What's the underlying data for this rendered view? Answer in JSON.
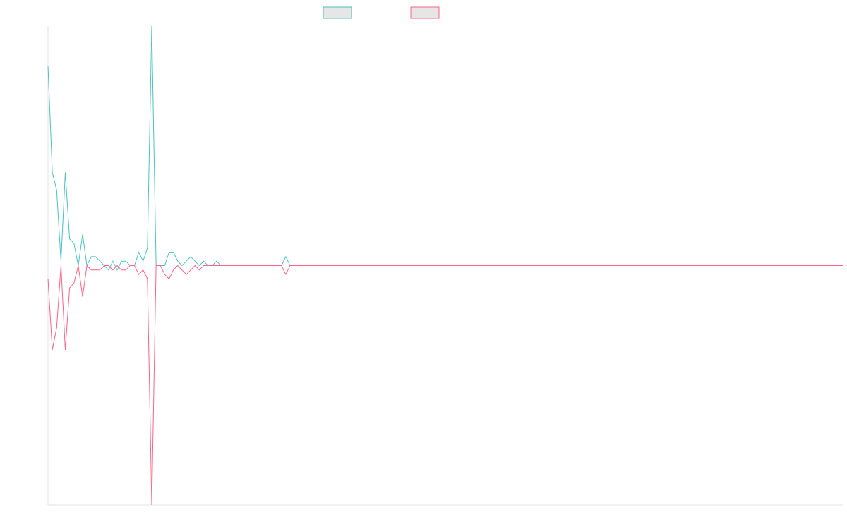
{
  "chart_data": {
    "type": "line",
    "title": "",
    "xlabel": "",
    "ylabel": "",
    "grid": false,
    "legend_placement": "top-center",
    "xlim": [
      0,
      184
    ],
    "ylim": [
      -54,
      54
    ],
    "x_start": 0,
    "x_step": 1,
    "series": [
      {
        "color": "#4bc0c0",
        "values": [
          45,
          21,
          17,
          1,
          21,
          6,
          5,
          0,
          7,
          0,
          2,
          2,
          1,
          0,
          -1,
          1,
          -1,
          1,
          1,
          0,
          0,
          3,
          1,
          4,
          54,
          0,
          0,
          0,
          3,
          3,
          1,
          0,
          1,
          2,
          1,
          0,
          1,
          0,
          0,
          1,
          0,
          0,
          0,
          0,
          0,
          0,
          0,
          0,
          0,
          0,
          0,
          0,
          0,
          0,
          0,
          2,
          0
        ]
      },
      {
        "color": "#ff6384",
        "values": [
          -3,
          -19,
          -14,
          0,
          -19,
          -5,
          -4,
          0,
          -7,
          0,
          -1,
          -1,
          -1,
          0,
          0,
          -1,
          0,
          -1,
          -1,
          0,
          0,
          -2,
          -1,
          -3,
          -54,
          0,
          0,
          -2,
          -3,
          -1,
          0,
          -1,
          -2,
          -1,
          0,
          -1,
          0,
          0,
          0,
          0,
          0,
          0,
          0,
          0,
          0,
          0,
          0,
          0,
          0,
          0,
          0,
          0,
          0,
          0,
          0,
          -2,
          0
        ]
      }
    ]
  }
}
